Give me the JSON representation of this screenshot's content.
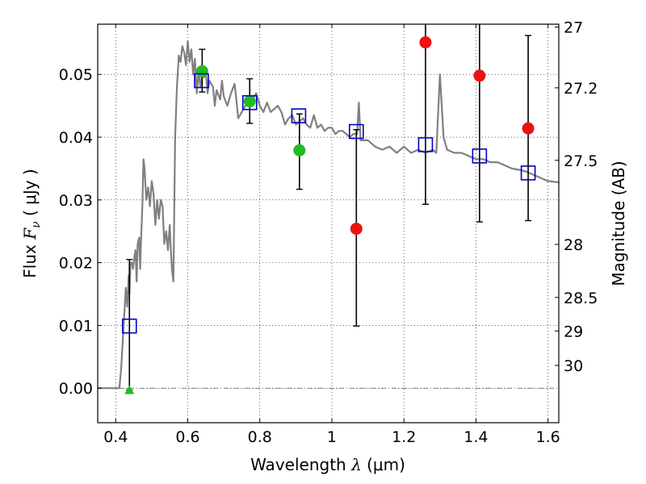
{
  "chart_data": {
    "type": "scatter",
    "xlabel": {
      "main": "Wavelength",
      "symbol": "λ",
      "unit": "(μm)"
    },
    "ylabel": {
      "main": "Flux",
      "symbol": "F",
      "sub": "ν",
      "unit": "( μJy )"
    },
    "y2label": "Magnitude (AB)",
    "xlim": [
      0.35,
      1.63
    ],
    "ylim": [
      -0.0055,
      0.058
    ],
    "grid": true,
    "x_ticks": [
      0.4,
      0.6,
      0.8,
      1.0,
      1.2,
      1.4,
      1.6
    ],
    "x_tick_labels": [
      "0.4",
      "0.6",
      "0.8",
      "1",
      "1.2",
      "1.4",
      "1.6"
    ],
    "y_ticks": [
      0.0,
      0.01,
      0.02,
      0.03,
      0.04,
      0.05
    ],
    "y_tick_labels": [
      "0.00",
      "0.01",
      "0.02",
      "0.03",
      "0.04",
      "0.05"
    ],
    "y2_ticks": [
      {
        "mag": 27,
        "label": "27"
      },
      {
        "mag": 27.2,
        "label": "27.2"
      },
      {
        "mag": 27.5,
        "label": "27.5"
      },
      {
        "mag": 28,
        "label": "28"
      },
      {
        "mag": 28.5,
        "label": "28.5"
      },
      {
        "mag": 29,
        "label": "29"
      },
      {
        "mag": 30,
        "label": "30"
      }
    ],
    "zero_line": 0.0,
    "model_color": "#808080",
    "model_spectrum": [
      [
        0.35,
        0.0
      ],
      [
        0.41,
        0.0
      ],
      [
        0.415,
        0.003
      ],
      [
        0.42,
        0.008
      ],
      [
        0.425,
        0.013
      ],
      [
        0.428,
        0.016
      ],
      [
        0.432,
        0.013
      ],
      [
        0.436,
        0.018
      ],
      [
        0.438,
        0.015
      ],
      [
        0.441,
        0.02
      ],
      [
        0.445,
        0.02
      ],
      [
        0.448,
        0.019
      ],
      [
        0.452,
        0.021
      ],
      [
        0.455,
        0.022
      ],
      [
        0.458,
        0.017
      ],
      [
        0.461,
        0.023
      ],
      [
        0.465,
        0.024
      ],
      [
        0.468,
        0.019
      ],
      [
        0.47,
        0.023
      ],
      [
        0.474,
        0.029
      ],
      [
        0.477,
        0.0365
      ],
      [
        0.48,
        0.035
      ],
      [
        0.485,
        0.03
      ],
      [
        0.49,
        0.032
      ],
      [
        0.495,
        0.029
      ],
      [
        0.5,
        0.033
      ],
      [
        0.505,
        0.031
      ],
      [
        0.51,
        0.026
      ],
      [
        0.515,
        0.03
      ],
      [
        0.52,
        0.027
      ],
      [
        0.525,
        0.03
      ],
      [
        0.53,
        0.029
      ],
      [
        0.535,
        0.023
      ],
      [
        0.54,
        0.025
      ],
      [
        0.545,
        0.022
      ],
      [
        0.55,
        0.026
      ],
      [
        0.553,
        0.022
      ],
      [
        0.556,
        0.019
      ],
      [
        0.56,
        0.017
      ],
      [
        0.565,
        0.04
      ],
      [
        0.57,
        0.048
      ],
      [
        0.575,
        0.053
      ],
      [
        0.58,
        0.052
      ],
      [
        0.585,
        0.0545
      ],
      [
        0.59,
        0.0535
      ],
      [
        0.595,
        0.0515
      ],
      [
        0.6,
        0.0553
      ],
      [
        0.605,
        0.052
      ],
      [
        0.61,
        0.054
      ],
      [
        0.615,
        0.05
      ],
      [
        0.62,
        0.0525
      ],
      [
        0.625,
        0.047
      ],
      [
        0.63,
        0.0505
      ],
      [
        0.635,
        0.048
      ],
      [
        0.64,
        0.05
      ],
      [
        0.645,
        0.0495
      ],
      [
        0.65,
        0.0505
      ],
      [
        0.655,
        0.047
      ],
      [
        0.66,
        0.049
      ],
      [
        0.67,
        0.048
      ],
      [
        0.675,
        0.045
      ],
      [
        0.68,
        0.0475
      ],
      [
        0.69,
        0.046
      ],
      [
        0.695,
        0.049
      ],
      [
        0.7,
        0.0465
      ],
      [
        0.71,
        0.045
      ],
      [
        0.72,
        0.047
      ],
      [
        0.73,
        0.0485
      ],
      [
        0.735,
        0.046
      ],
      [
        0.74,
        0.043
      ],
      [
        0.75,
        0.044
      ],
      [
        0.76,
        0.045
      ],
      [
        0.77,
        0.0455
      ],
      [
        0.78,
        0.046
      ],
      [
        0.79,
        0.047
      ],
      [
        0.8,
        0.045
      ],
      [
        0.81,
        0.044
      ],
      [
        0.82,
        0.0455
      ],
      [
        0.83,
        0.044
      ],
      [
        0.84,
        0.0445
      ],
      [
        0.85,
        0.045
      ],
      [
        0.86,
        0.044
      ],
      [
        0.87,
        0.042
      ],
      [
        0.88,
        0.043
      ],
      [
        0.89,
        0.0435
      ],
      [
        0.9,
        0.042
      ],
      [
        0.91,
        0.0425
      ],
      [
        0.92,
        0.043
      ],
      [
        0.93,
        0.042
      ],
      [
        0.94,
        0.0415
      ],
      [
        0.95,
        0.0435
      ],
      [
        0.96,
        0.0415
      ],
      [
        0.97,
        0.042
      ],
      [
        0.98,
        0.041
      ],
      [
        0.99,
        0.0415
      ],
      [
        1.0,
        0.0415
      ],
      [
        1.01,
        0.0405
      ],
      [
        1.02,
        0.041
      ],
      [
        1.03,
        0.041
      ],
      [
        1.04,
        0.0405
      ],
      [
        1.05,
        0.04
      ],
      [
        1.06,
        0.0405
      ],
      [
        1.07,
        0.0405
      ],
      [
        1.075,
        0.0455
      ],
      [
        1.08,
        0.0395
      ],
      [
        1.09,
        0.0395
      ],
      [
        1.1,
        0.0395
      ],
      [
        1.12,
        0.0385
      ],
      [
        1.14,
        0.038
      ],
      [
        1.16,
        0.0385
      ],
      [
        1.18,
        0.0375
      ],
      [
        1.2,
        0.0385
      ],
      [
        1.22,
        0.0375
      ],
      [
        1.24,
        0.038
      ],
      [
        1.26,
        0.0375
      ],
      [
        1.28,
        0.038
      ],
      [
        1.29,
        0.0375
      ],
      [
        1.3,
        0.05
      ],
      [
        1.31,
        0.04
      ],
      [
        1.32,
        0.038
      ],
      [
        1.34,
        0.0375
      ],
      [
        1.36,
        0.0375
      ],
      [
        1.38,
        0.037
      ],
      [
        1.4,
        0.0365
      ],
      [
        1.42,
        0.0365
      ],
      [
        1.44,
        0.036
      ],
      [
        1.46,
        0.036
      ],
      [
        1.48,
        0.0355
      ],
      [
        1.5,
        0.035
      ],
      [
        1.52,
        0.0348
      ],
      [
        1.54,
        0.0345
      ],
      [
        1.56,
        0.034
      ],
      [
        1.58,
        0.0335
      ],
      [
        1.6,
        0.033
      ],
      [
        1.63,
        0.0328
      ]
    ],
    "model_photometry": {
      "color": "#0000cc",
      "points": [
        {
          "x": 0.438,
          "y": 0.0099
        },
        {
          "x": 0.638,
          "y": 0.049
        },
        {
          "x": 0.772,
          "y": 0.0455
        },
        {
          "x": 0.908,
          "y": 0.0434
        },
        {
          "x": 1.068,
          "y": 0.0409
        },
        {
          "x": 1.26,
          "y": 0.0388
        },
        {
          "x": 1.41,
          "y": 0.037
        },
        {
          "x": 1.545,
          "y": 0.0343
        }
      ]
    },
    "detections": {
      "color": "#22bb22",
      "points": [
        {
          "x": 0.64,
          "y": 0.0505,
          "err_low": 0.0472,
          "err_high": 0.054
        },
        {
          "x": 0.772,
          "y": 0.0457,
          "err_low": 0.0422,
          "err_high": 0.0493
        },
        {
          "x": 0.91,
          "y": 0.0379,
          "err_low": 0.0317,
          "err_high": 0.0437
        }
      ]
    },
    "upper_limit": {
      "color": "#22bb22",
      "x": 0.438,
      "y": -0.0003,
      "err_low": -0.0003,
      "err_high": 0.0205
    },
    "non_detections": {
      "color": "#ee1111",
      "points": [
        {
          "x": 1.068,
          "y": 0.0254,
          "err_low": 0.0099,
          "err_high": 0.0412
        },
        {
          "x": 1.26,
          "y": 0.0551,
          "err_low": 0.0293,
          "err_high": 0.0585
        },
        {
          "x": 1.41,
          "y": 0.0498,
          "err_low": 0.0265,
          "err_high": 0.0585
        },
        {
          "x": 1.545,
          "y": 0.0414,
          "err_low": 0.0267,
          "err_high": 0.0562
        }
      ]
    }
  }
}
